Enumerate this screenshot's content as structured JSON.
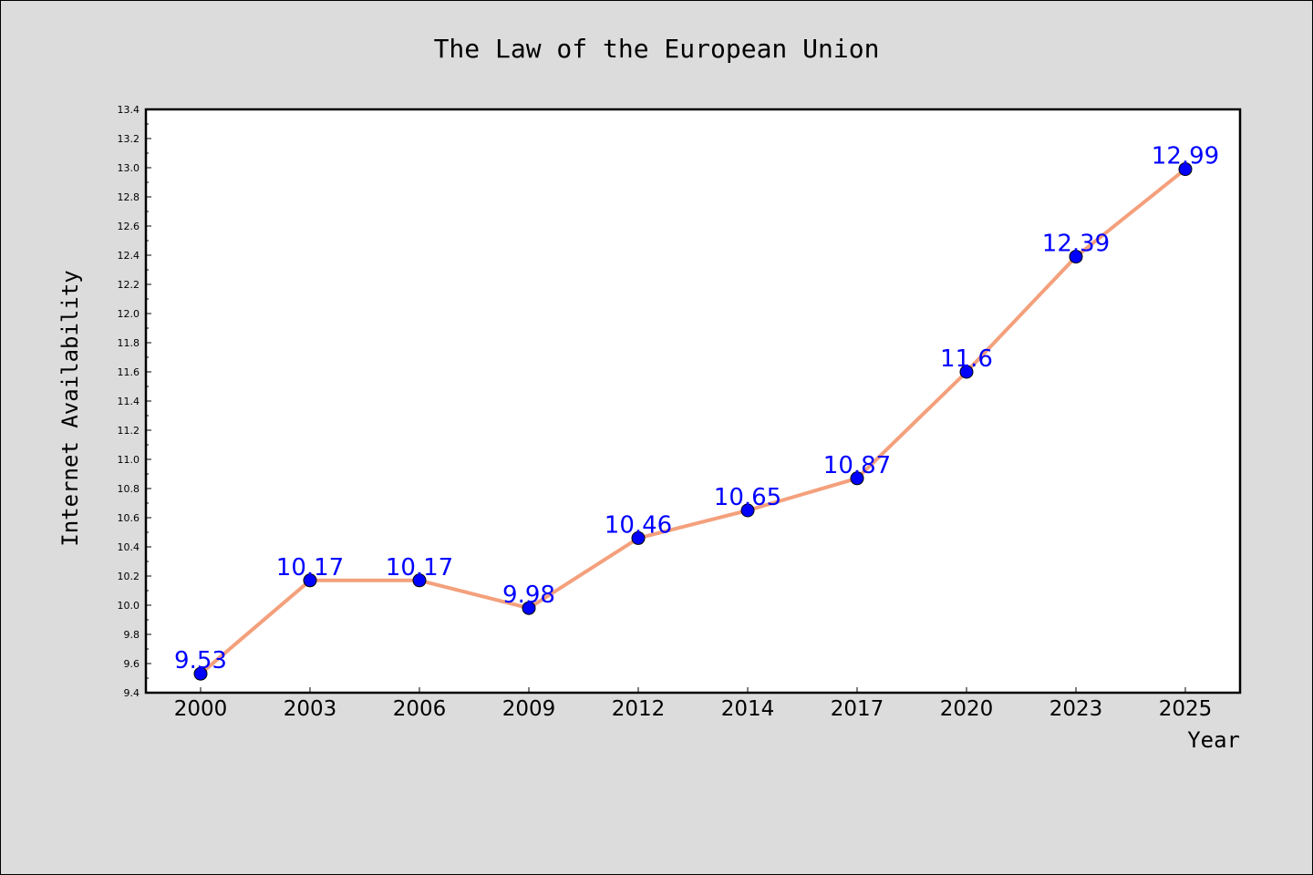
{
  "chart_data": {
    "type": "line",
    "title": "The Law of the European Union",
    "xlabel": "Year",
    "ylabel": "Internet Availability",
    "categories": [
      "2000",
      "2003",
      "2006",
      "2009",
      "2012",
      "2014",
      "2017",
      "2020",
      "2023",
      "2025"
    ],
    "values": [
      9.53,
      10.17,
      10.17,
      9.98,
      10.46,
      10.65,
      10.87,
      11.6,
      12.39,
      12.99
    ],
    "data_labels": [
      "9.53",
      "10.17",
      "10.17",
      "9.98",
      "10.46",
      "10.65",
      "10.87",
      "11.6",
      "12.39",
      "12.99"
    ],
    "ylim": [
      9.4,
      13.4
    ],
    "yticks": [
      "9.4",
      "9.6",
      "9.8",
      "10.0",
      "10.2",
      "10.4",
      "10.6",
      "10.8",
      "11.0",
      "11.2",
      "11.4",
      "11.6",
      "11.8",
      "12.0",
      "12.2",
      "12.4",
      "12.6",
      "12.8",
      "13.0",
      "13.2",
      "13.4"
    ],
    "grid": false,
    "legend": "none",
    "colors": {
      "line": "#f4a07c",
      "marker": "#0000ff",
      "label": "#0000ff",
      "background": "#dcdcdc",
      "plot_background": "#ffffff"
    }
  }
}
